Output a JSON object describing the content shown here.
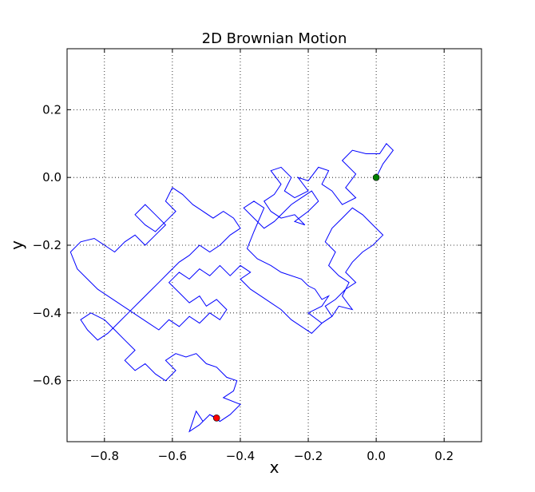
{
  "chart_data": {
    "type": "line",
    "title": "2D Brownian Motion",
    "xlabel": "x",
    "ylabel": "y",
    "xlim": [
      -0.91,
      0.31
    ],
    "ylim": [
      -0.78,
      0.38
    ],
    "xticks": [
      -0.8,
      -0.6,
      -0.4,
      -0.2,
      0.0,
      0.2
    ],
    "xtick_labels": [
      "−0.8",
      "−0.6",
      "−0.4",
      "−0.2",
      "0.0",
      "0.2"
    ],
    "yticks": [
      -0.6,
      -0.4,
      -0.2,
      0.0,
      0.2
    ],
    "ytick_labels": [
      "−0.6",
      "−0.4",
      "−0.2",
      "0.0",
      "0.2"
    ],
    "grid": true,
    "legend": "none",
    "series": [
      {
        "color": "#0000ff",
        "points": [
          [
            0.0,
            0.0
          ],
          [
            0.02,
            0.04
          ],
          [
            0.05,
            0.08
          ],
          [
            0.03,
            0.1
          ],
          [
            0.01,
            0.07
          ],
          [
            -0.03,
            0.07
          ],
          [
            -0.07,
            0.08
          ],
          [
            -0.1,
            0.05
          ],
          [
            -0.06,
            0.01
          ],
          [
            -0.09,
            -0.03
          ],
          [
            -0.06,
            -0.06
          ],
          [
            -0.1,
            -0.08
          ],
          [
            -0.13,
            -0.04
          ],
          [
            -0.16,
            -0.02
          ],
          [
            -0.14,
            0.02
          ],
          [
            -0.17,
            0.03
          ],
          [
            -0.2,
            -0.01
          ],
          [
            -0.23,
            0.0
          ],
          [
            -0.2,
            -0.04
          ],
          [
            -0.24,
            -0.06
          ],
          [
            -0.27,
            -0.04
          ],
          [
            -0.25,
            0.0
          ],
          [
            -0.28,
            0.03
          ],
          [
            -0.31,
            0.02
          ],
          [
            -0.28,
            -0.02
          ],
          [
            -0.3,
            -0.05
          ],
          [
            -0.33,
            -0.07
          ],
          [
            -0.31,
            -0.1
          ],
          [
            -0.28,
            -0.12
          ],
          [
            -0.24,
            -0.11
          ],
          [
            -0.21,
            -0.14
          ],
          [
            -0.24,
            -0.13
          ],
          [
            -0.2,
            -0.1
          ],
          [
            -0.17,
            -0.07
          ],
          [
            -0.19,
            -0.04
          ],
          [
            -0.22,
            -0.06
          ],
          [
            -0.25,
            -0.08
          ],
          [
            -0.27,
            -0.1
          ],
          [
            -0.3,
            -0.13
          ],
          [
            -0.33,
            -0.15
          ],
          [
            -0.36,
            -0.12
          ],
          [
            -0.39,
            -0.09
          ],
          [
            -0.36,
            -0.07
          ],
          [
            -0.33,
            -0.09
          ],
          [
            -0.36,
            -0.16
          ],
          [
            -0.38,
            -0.21
          ],
          [
            -0.35,
            -0.24
          ],
          [
            -0.31,
            -0.26
          ],
          [
            -0.28,
            -0.28
          ],
          [
            -0.22,
            -0.3
          ],
          [
            -0.2,
            -0.32
          ],
          [
            -0.18,
            -0.33
          ],
          [
            -0.16,
            -0.36
          ],
          [
            -0.14,
            -0.35
          ],
          [
            -0.16,
            -0.38
          ],
          [
            -0.2,
            -0.4
          ],
          [
            -0.16,
            -0.43
          ],
          [
            -0.13,
            -0.41
          ],
          [
            -0.11,
            -0.38
          ],
          [
            -0.07,
            -0.39
          ],
          [
            -0.1,
            -0.35
          ],
          [
            -0.08,
            -0.31
          ],
          [
            -0.11,
            -0.29
          ],
          [
            -0.14,
            -0.26
          ],
          [
            -0.12,
            -0.22
          ],
          [
            -0.15,
            -0.19
          ],
          [
            -0.13,
            -0.15
          ],
          [
            -0.1,
            -0.12
          ],
          [
            -0.07,
            -0.09
          ],
          [
            -0.04,
            -0.11
          ],
          [
            -0.01,
            -0.14
          ],
          [
            0.02,
            -0.17
          ],
          [
            -0.01,
            -0.2
          ],
          [
            -0.04,
            -0.22
          ],
          [
            -0.07,
            -0.25
          ],
          [
            -0.09,
            -0.28
          ],
          [
            -0.06,
            -0.31
          ],
          [
            -0.09,
            -0.33
          ],
          [
            -0.12,
            -0.36
          ],
          [
            -0.15,
            -0.38
          ],
          [
            -0.13,
            -0.41
          ],
          [
            -0.16,
            -0.43
          ],
          [
            -0.19,
            -0.46
          ],
          [
            -0.22,
            -0.44
          ],
          [
            -0.25,
            -0.42
          ],
          [
            -0.28,
            -0.39
          ],
          [
            -0.31,
            -0.37
          ],
          [
            -0.34,
            -0.35
          ],
          [
            -0.37,
            -0.33
          ],
          [
            -0.4,
            -0.3
          ],
          [
            -0.37,
            -0.28
          ],
          [
            -0.4,
            -0.26
          ],
          [
            -0.43,
            -0.29
          ],
          [
            -0.46,
            -0.26
          ],
          [
            -0.49,
            -0.29
          ],
          [
            -0.52,
            -0.27
          ],
          [
            -0.55,
            -0.3
          ],
          [
            -0.58,
            -0.28
          ],
          [
            -0.61,
            -0.31
          ],
          [
            -0.58,
            -0.34
          ],
          [
            -0.55,
            -0.37
          ],
          [
            -0.52,
            -0.35
          ],
          [
            -0.5,
            -0.38
          ],
          [
            -0.47,
            -0.36
          ],
          [
            -0.44,
            -0.39
          ],
          [
            -0.46,
            -0.42
          ],
          [
            -0.49,
            -0.4
          ],
          [
            -0.52,
            -0.43
          ],
          [
            -0.55,
            -0.41
          ],
          [
            -0.58,
            -0.44
          ],
          [
            -0.61,
            -0.42
          ],
          [
            -0.64,
            -0.45
          ],
          [
            -0.67,
            -0.43
          ],
          [
            -0.7,
            -0.41
          ],
          [
            -0.73,
            -0.39
          ],
          [
            -0.76,
            -0.37
          ],
          [
            -0.79,
            -0.35
          ],
          [
            -0.82,
            -0.33
          ],
          [
            -0.85,
            -0.3
          ],
          [
            -0.88,
            -0.27
          ],
          [
            -0.9,
            -0.22
          ],
          [
            -0.87,
            -0.19
          ],
          [
            -0.83,
            -0.18
          ],
          [
            -0.8,
            -0.2
          ],
          [
            -0.77,
            -0.22
          ],
          [
            -0.74,
            -0.19
          ],
          [
            -0.71,
            -0.17
          ],
          [
            -0.68,
            -0.2
          ],
          [
            -0.65,
            -0.17
          ],
          [
            -0.62,
            -0.14
          ],
          [
            -0.65,
            -0.11
          ],
          [
            -0.68,
            -0.08
          ],
          [
            -0.71,
            -0.11
          ],
          [
            -0.68,
            -0.14
          ],
          [
            -0.65,
            -0.16
          ],
          [
            -0.62,
            -0.13
          ],
          [
            -0.59,
            -0.1
          ],
          [
            -0.62,
            -0.07
          ],
          [
            -0.6,
            -0.03
          ],
          [
            -0.57,
            -0.05
          ],
          [
            -0.54,
            -0.08
          ],
          [
            -0.51,
            -0.1
          ],
          [
            -0.48,
            -0.12
          ],
          [
            -0.45,
            -0.1
          ],
          [
            -0.42,
            -0.12
          ],
          [
            -0.4,
            -0.15
          ],
          [
            -0.43,
            -0.17
          ],
          [
            -0.46,
            -0.2
          ],
          [
            -0.49,
            -0.22
          ],
          [
            -0.52,
            -0.2
          ],
          [
            -0.55,
            -0.23
          ],
          [
            -0.58,
            -0.25
          ],
          [
            -0.61,
            -0.28
          ],
          [
            -0.64,
            -0.31
          ],
          [
            -0.67,
            -0.34
          ],
          [
            -0.7,
            -0.37
          ],
          [
            -0.73,
            -0.4
          ],
          [
            -0.76,
            -0.43
          ],
          [
            -0.79,
            -0.46
          ],
          [
            -0.82,
            -0.48
          ],
          [
            -0.85,
            -0.45
          ],
          [
            -0.87,
            -0.42
          ],
          [
            -0.84,
            -0.4
          ],
          [
            -0.8,
            -0.42
          ],
          [
            -0.77,
            -0.45
          ],
          [
            -0.74,
            -0.48
          ],
          [
            -0.71,
            -0.51
          ],
          [
            -0.74,
            -0.54
          ],
          [
            -0.71,
            -0.57
          ],
          [
            -0.68,
            -0.55
          ],
          [
            -0.65,
            -0.58
          ],
          [
            -0.62,
            -0.6
          ],
          [
            -0.59,
            -0.57
          ],
          [
            -0.62,
            -0.54
          ],
          [
            -0.59,
            -0.52
          ],
          [
            -0.56,
            -0.53
          ],
          [
            -0.53,
            -0.52
          ],
          [
            -0.5,
            -0.55
          ],
          [
            -0.47,
            -0.56
          ],
          [
            -0.44,
            -0.59
          ],
          [
            -0.41,
            -0.6
          ],
          [
            -0.42,
            -0.63
          ],
          [
            -0.45,
            -0.65
          ],
          [
            -0.4,
            -0.67
          ],
          [
            -0.43,
            -0.7
          ],
          [
            -0.46,
            -0.72
          ],
          [
            -0.49,
            -0.7
          ],
          [
            -0.52,
            -0.73
          ],
          [
            -0.55,
            -0.75
          ],
          [
            -0.53,
            -0.69
          ],
          [
            -0.51,
            -0.72
          ],
          [
            -0.49,
            -0.7
          ],
          [
            -0.47,
            -0.71
          ]
        ]
      }
    ],
    "markers": [
      {
        "label": "start",
        "x": 0.0,
        "y": 0.0,
        "color": "#008000"
      },
      {
        "label": "end",
        "x": -0.47,
        "y": -0.71,
        "color": "#ff0000"
      }
    ]
  }
}
